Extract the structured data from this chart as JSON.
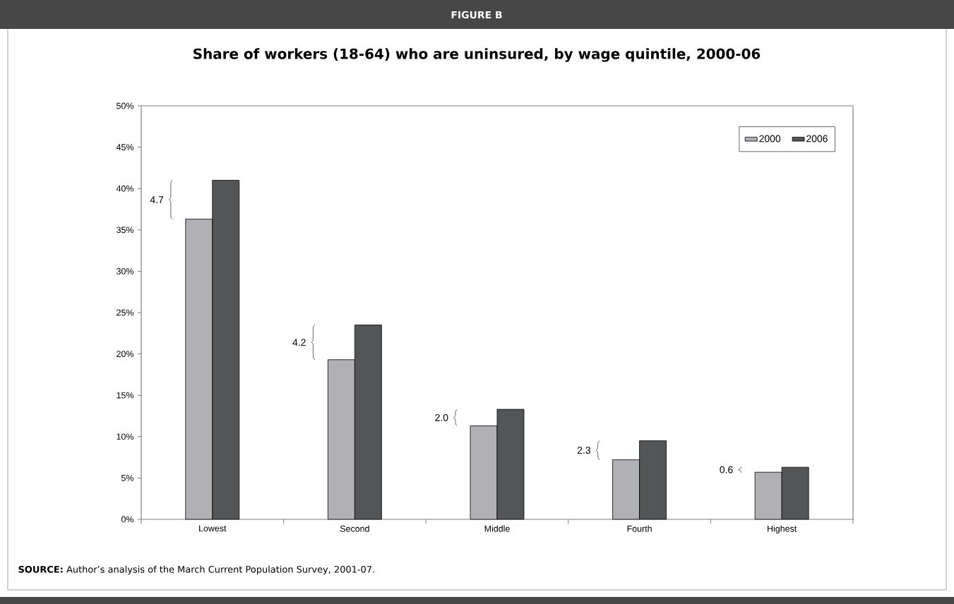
{
  "chart_data": {
    "type": "bar",
    "title": "Share of workers (18-64) who are uninsured, by wage quintile, 2000-06",
    "categories": [
      "Lowest",
      "Second",
      "Middle",
      "Fourth",
      "Highest"
    ],
    "series": [
      {
        "name": "2000",
        "color": "#b1b1b5",
        "values": [
          36.3,
          19.3,
          11.3,
          7.2,
          5.7
        ]
      },
      {
        "name": "2006",
        "color": "#545557",
        "values": [
          41.0,
          23.5,
          13.3,
          9.5,
          6.3
        ]
      }
    ],
    "ylim": [
      0,
      50
    ],
    "yticks": [
      {
        "value": 0,
        "label": "0%"
      },
      {
        "value": 5,
        "label": "5%"
      },
      {
        "value": 10,
        "label": "10%"
      },
      {
        "value": 15,
        "label": "15%"
      },
      {
        "value": 20,
        "label": "20%"
      },
      {
        "value": 25,
        "label": "25%"
      },
      {
        "value": 30,
        "label": "30%"
      },
      {
        "value": 35,
        "label": "35%"
      },
      {
        "value": 40,
        "label": "40%"
      },
      {
        "value": 45,
        "label": "45%"
      },
      {
        "value": 50,
        "label": "50%"
      }
    ],
    "legend": "top right",
    "grid": false,
    "annotations": [
      "FIGURE B",
      "4.7",
      "4.2",
      "2.0",
      "2.3",
      "0.6",
      "**SOURCE:** Author’s analysis of the March Current Population Survey, 2001-07."
    ]
  }
}
